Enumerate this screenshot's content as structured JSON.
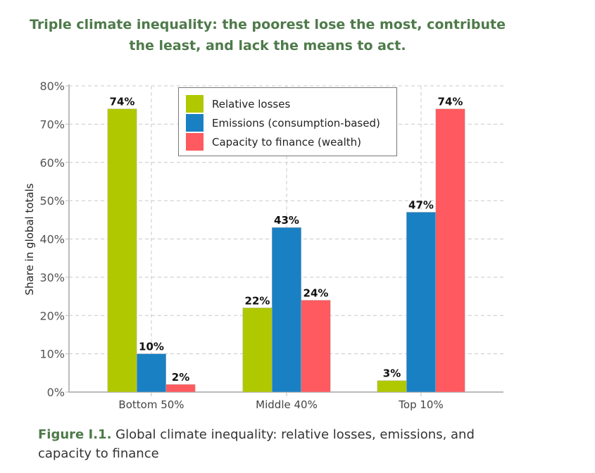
{
  "title": "Triple climate inequality: the poorest lose the most, contribute the least, and lack the means to act.",
  "caption": {
    "label": "Figure I.1.",
    "text": " Global climate inequality: relative losses, emissions, and capacity to finance"
  },
  "chart_data": {
    "type": "bar",
    "title": "Triple climate inequality: the poorest lose the most, contribute the least, and lack the means to act.",
    "xlabel": "",
    "ylabel": "Share in global totals",
    "ylim": [
      0,
      80
    ],
    "yticks": [
      "0%",
      "10%",
      "20%",
      "30%",
      "40%",
      "50%",
      "60%",
      "70%",
      "80%"
    ],
    "grid": true,
    "legend_position": "top-center",
    "categories": [
      "Bottom 50%",
      "Middle 40%",
      "Top 10%"
    ],
    "series": [
      {
        "name": "Relative losses",
        "color": "#b0c800",
        "values": [
          74,
          22,
          3
        ]
      },
      {
        "name": "Emissions (consumption-based)",
        "color": "#1a80c4",
        "values": [
          10,
          43,
          47
        ]
      },
      {
        "name": "Capacity to finance (wealth)",
        "color": "#ff5a5f",
        "values": [
          2,
          24,
          74
        ]
      }
    ]
  }
}
